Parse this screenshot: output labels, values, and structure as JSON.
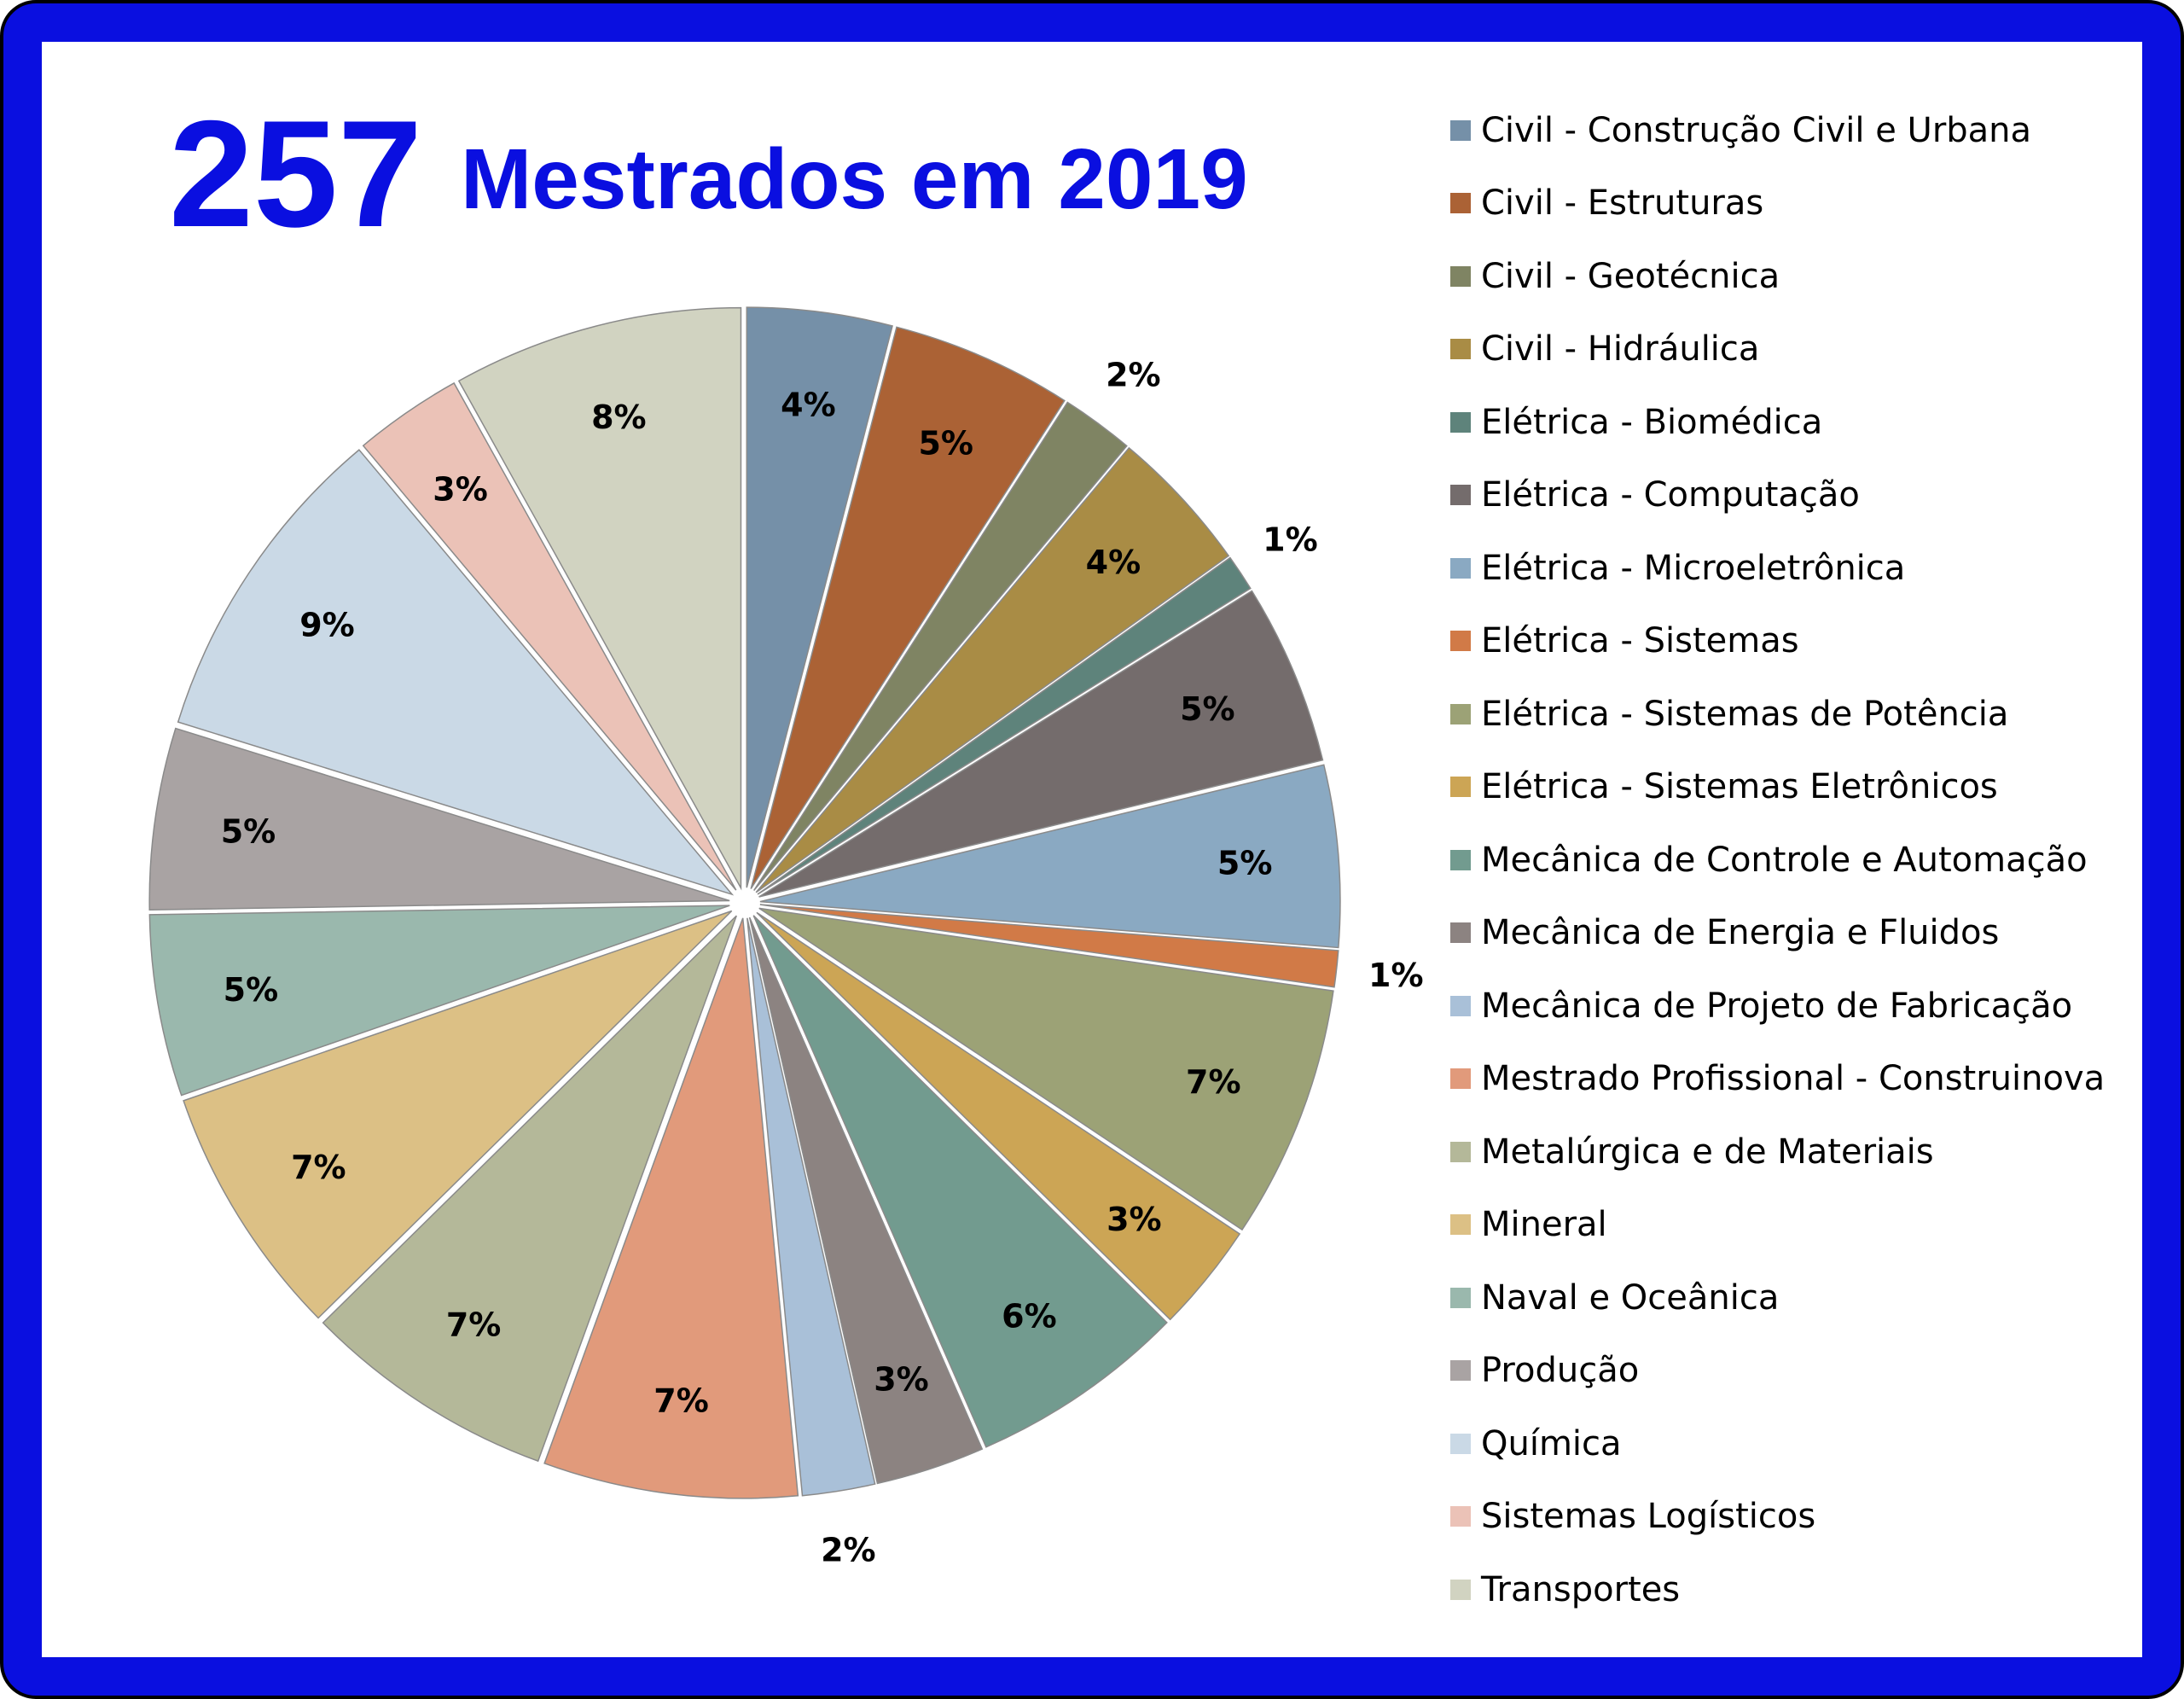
{
  "header": {
    "count": "257",
    "title": "Mestrados em 2019"
  },
  "colors": {
    "frame": "#0a0fe0",
    "title": "#0a0fe0"
  },
  "chart_data": {
    "type": "pie",
    "legend_position": "right",
    "exploded": true,
    "slices": [
      {
        "label": "Civil - Construção Civil e Urbana",
        "value": 4,
        "display": "4%",
        "color": "#7590a8"
      },
      {
        "label": "Civil - Estruturas",
        "value": 5,
        "display": "5%",
        "color": "#ab6235"
      },
      {
        "label": "Civil - Geotécnica",
        "value": 2,
        "display": "2%",
        "color": "#7f8463"
      },
      {
        "label": "Civil - Hidráulica",
        "value": 4,
        "display": "4%",
        "color": "#a98c45"
      },
      {
        "label": "Elétrica - Biomédica",
        "value": 1,
        "display": "1%",
        "color": "#5e837b"
      },
      {
        "label": "Elétrica - Computação",
        "value": 5,
        "display": "5%",
        "color": "#746c6c"
      },
      {
        "label": "Elétrica - Microeletrônica",
        "value": 5,
        "display": "5%",
        "color": "#8aa9c2"
      },
      {
        "label": "Elétrica - Sistemas",
        "value": 1,
        "display": "1%",
        "color": "#d17a47"
      },
      {
        "label": "Elétrica - Sistemas de Potência",
        "value": 7,
        "display": "7%",
        "color": "#9ca276"
      },
      {
        "label": "Elétrica - Sistemas Eletrônicos",
        "value": 3,
        "display": "3%",
        "color": "#cca555"
      },
      {
        "label": "Mecânica de Controle e Automação",
        "value": 6,
        "display": "6%",
        "color": "#729b8f"
      },
      {
        "label": "Mecânica de Energia e Fluidos",
        "value": 3,
        "display": "3%",
        "color": "#8c8381"
      },
      {
        "label": "Mecânica de Projeto de Fabricação",
        "value": 2,
        "display": "2%",
        "color": "#a9c0d8"
      },
      {
        "label": "Mestrado Profissional - Construinova",
        "value": 7,
        "display": "7%",
        "color": "#e19a7b"
      },
      {
        "label": "Metalúrgica e de Materiais",
        "value": 7,
        "display": "7%",
        "color": "#b4b899"
      },
      {
        "label": "Mineral",
        "value": 7,
        "display": "7%",
        "color": "#dcc085"
      },
      {
        "label": "Naval e Oceânica",
        "value": 5,
        "display": "5%",
        "color": "#9ab8ad"
      },
      {
        "label": "Produção",
        "value": 5,
        "display": "5%",
        "color": "#a9a3a3"
      },
      {
        "label": "Química",
        "value": 9,
        "display": "9%",
        "color": "#cad9e6"
      },
      {
        "label": "Sistemas Logísticos",
        "value": 3,
        "display": "3%",
        "color": "#ebc2b7"
      },
      {
        "label": "Transportes",
        "value": 8,
        "display": "8%",
        "color": "#d1d3c1"
      }
    ]
  }
}
